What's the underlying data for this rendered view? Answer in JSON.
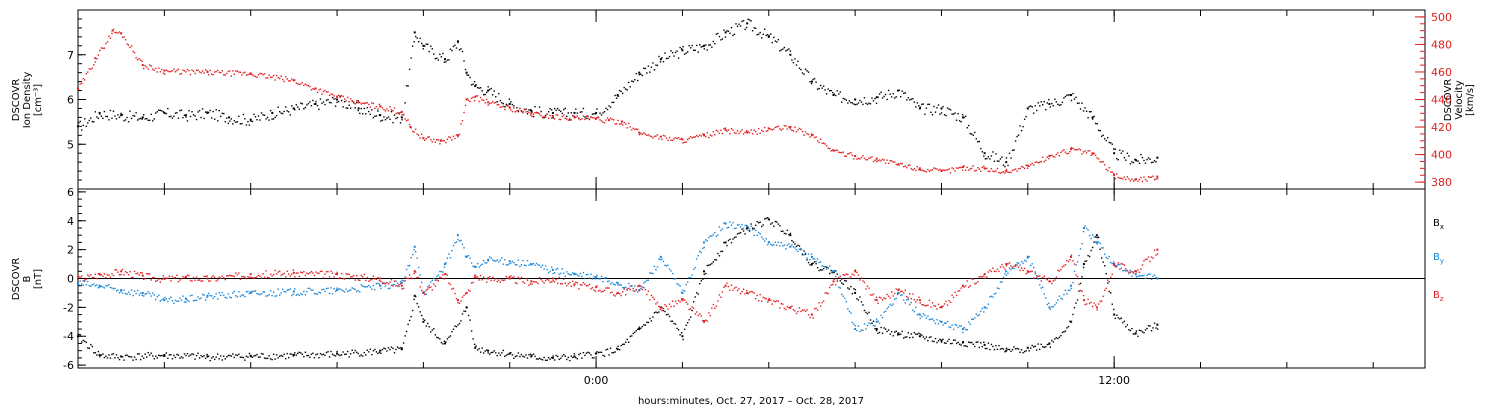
{
  "chart_data": [
    {
      "type": "scatter",
      "panel": "top",
      "left_axis": {
        "label_lines": [
          "DSCOVR",
          "Ion Density",
          "[cm⁻³]"
        ],
        "ylim": [
          4.0,
          8.0
        ],
        "ticks": [
          5,
          6,
          7
        ],
        "tick_labels": [
          "5",
          "6",
          "7"
        ],
        "color": "#000000"
      },
      "right_axis": {
        "label_lines": [
          "DSCOVR",
          "Velocity",
          "[km/s]"
        ],
        "ylim": [
          375,
          505
        ],
        "ticks": [
          380,
          400,
          420,
          440,
          460,
          480,
          500
        ],
        "tick_labels": [
          "380",
          "400",
          "420",
          "440",
          "460",
          "480",
          "500"
        ],
        "color": "#e02020"
      },
      "xlim_hours": [
        -12.0,
        19.2
      ],
      "x_unit": "hours from 0:00 Oct. 28, 2017",
      "series": [
        {
          "key": "density",
          "axis": "left",
          "color": "#000000",
          "x": [
            -12.0,
            -11.5,
            -11.0,
            -10.5,
            -10.0,
            -9.5,
            -9.0,
            -8.5,
            -8.0,
            -7.5,
            -7.0,
            -6.5,
            -6.0,
            -5.5,
            -5.0,
            -4.5,
            -4.2,
            -4.0,
            -3.5,
            -3.2,
            -3.0,
            -2.8,
            -2.5,
            -2.0,
            -1.5,
            -1.0,
            -0.5,
            0.0,
            0.5,
            1.0,
            1.5,
            2.0,
            2.5,
            3.0,
            3.5,
            4.0,
            4.5,
            5.0,
            5.5,
            6.0,
            6.5,
            7.0,
            7.5,
            8.0,
            8.5,
            9.0,
            9.5,
            10.0,
            10.5,
            11.0,
            11.5,
            12.0,
            12.5,
            13.0
          ],
          "y": [
            5.4,
            5.7,
            5.65,
            5.6,
            5.7,
            5.65,
            5.7,
            5.6,
            5.55,
            5.7,
            5.8,
            5.9,
            6.0,
            5.8,
            5.65,
            5.6,
            7.5,
            7.2,
            6.9,
            7.3,
            6.6,
            6.3,
            6.2,
            5.9,
            5.75,
            5.7,
            5.7,
            5.7,
            6.1,
            6.6,
            6.9,
            7.1,
            7.2,
            7.5,
            7.7,
            7.4,
            7.0,
            6.4,
            6.1,
            6.0,
            6.05,
            6.2,
            5.8,
            5.8,
            5.6,
            4.8,
            4.6,
            5.8,
            5.9,
            6.1,
            5.6,
            4.8,
            4.65,
            4.7
          ]
        },
        {
          "key": "velocity",
          "axis": "right",
          "color": "#e02020",
          "x": [
            -12.0,
            -11.6,
            -11.2,
            -11.0,
            -10.5,
            -10.0,
            -9.0,
            -8.0,
            -7.0,
            -6.5,
            -6.0,
            -5.5,
            -5.0,
            -4.5,
            -4.3,
            -4.0,
            -3.6,
            -3.2,
            -3.0,
            -2.8,
            -2.5,
            -2.0,
            -1.5,
            -1.0,
            -0.5,
            0.0,
            0.3,
            0.6,
            1.0,
            1.5,
            2.0,
            2.5,
            3.0,
            3.5,
            4.0,
            4.5,
            5.0,
            5.5,
            6.0,
            6.5,
            7.0,
            7.5,
            8.0,
            8.5,
            9.0,
            9.5,
            10.0,
            10.5,
            11.0,
            11.5,
            12.0,
            12.5,
            13.0
          ],
          "y": [
            448,
            470,
            490,
            488,
            465,
            461,
            460,
            459,
            454,
            448,
            442,
            438,
            435,
            431,
            420,
            412,
            410,
            414,
            440,
            442,
            438,
            434,
            430,
            428,
            427,
            426,
            425,
            424,
            416,
            413,
            411,
            414,
            418,
            416,
            419,
            420,
            414,
            403,
            399,
            397,
            393,
            390,
            388,
            391,
            390,
            388,
            392,
            399,
            404,
            401,
            385,
            382,
            384
          ]
        }
      ]
    },
    {
      "type": "scatter",
      "panel": "bottom",
      "left_axis": {
        "label_lines": [
          "DSCOVR",
          "B",
          "[nT]"
        ],
        "ylim": [
          -6.2,
          6.2
        ],
        "ticks": [
          -6,
          -4,
          -2,
          0,
          2,
          4,
          6
        ],
        "tick_labels": [
          "-6",
          "-4",
          "-2",
          "0",
          "2",
          "4",
          "6"
        ],
        "color": "#000000"
      },
      "xlim_hours": [
        -12.0,
        19.2
      ],
      "zero_line": true,
      "series": [
        {
          "key": "bx",
          "legend_letter": "B",
          "legend_sub": "x",
          "color": "#000000",
          "x": [
            -12.0,
            -11.5,
            -11.0,
            -10.0,
            -9.0,
            -8.0,
            -7.0,
            -6.0,
            -5.0,
            -4.5,
            -4.2,
            -4.0,
            -3.5,
            -3.0,
            -2.8,
            -2.5,
            -2.0,
            -1.5,
            -1.0,
            -0.5,
            0.0,
            0.5,
            1.0,
            1.5,
            2.0,
            2.5,
            3.0,
            3.5,
            4.0,
            4.5,
            5.0,
            5.5,
            6.0,
            6.5,
            7.0,
            7.5,
            8.0,
            8.5,
            9.0,
            9.5,
            10.0,
            10.5,
            11.0,
            11.3,
            11.6,
            12.0,
            12.5,
            13.0
          ],
          "y": [
            -4.0,
            -5.3,
            -5.4,
            -5.3,
            -5.4,
            -5.35,
            -5.3,
            -5.2,
            -5.0,
            -4.9,
            -1.2,
            -3.0,
            -4.5,
            -2.0,
            -4.8,
            -5.0,
            -5.2,
            -5.4,
            -5.5,
            -5.4,
            -5.2,
            -4.9,
            -3.5,
            -2.0,
            -4.0,
            0.5,
            2.5,
            3.5,
            4.1,
            3.0,
            1.0,
            0.5,
            -1.0,
            -3.5,
            -3.8,
            -4.0,
            -4.3,
            -4.4,
            -4.6,
            -5.0,
            -4.8,
            -4.5,
            -3.0,
            1.0,
            3.0,
            -2.5,
            -3.8,
            -3.2
          ]
        },
        {
          "key": "by",
          "legend_letter": "B",
          "legend_sub": "y",
          "color": "#1a86d8",
          "x": [
            -12.0,
            -11.5,
            -11.0,
            -10.5,
            -10.0,
            -9.5,
            -9.0,
            -8.0,
            -7.0,
            -6.0,
            -5.0,
            -4.5,
            -4.2,
            -4.0,
            -3.5,
            -3.2,
            -3.0,
            -2.8,
            -2.5,
            -2.0,
            -1.5,
            -1.0,
            -0.5,
            0.0,
            0.5,
            1.0,
            1.5,
            2.0,
            2.5,
            3.0,
            3.5,
            4.0,
            4.5,
            5.0,
            5.5,
            6.0,
            6.5,
            7.0,
            7.5,
            8.0,
            8.5,
            9.0,
            9.5,
            10.0,
            10.5,
            11.0,
            11.3,
            11.6,
            12.0,
            12.5,
            13.0
          ],
          "y": [
            -0.3,
            -0.5,
            -0.8,
            -1.0,
            -1.5,
            -1.4,
            -1.2,
            -1.0,
            -0.9,
            -0.8,
            -0.5,
            -0.3,
            2.2,
            -1.0,
            1.0,
            3.0,
            1.5,
            0.8,
            1.3,
            1.2,
            1.0,
            0.6,
            0.3,
            0.1,
            -0.3,
            -0.8,
            1.5,
            -1.0,
            2.5,
            3.8,
            3.6,
            2.5,
            2.2,
            1.5,
            0.5,
            -3.5,
            -3.0,
            -1.0,
            -2.5,
            -3.0,
            -3.5,
            -2.0,
            0.5,
            1.5,
            -2.0,
            -0.5,
            3.5,
            2.5,
            1.0,
            0.3,
            0.0
          ]
        },
        {
          "key": "bz",
          "legend_letter": "B",
          "legend_sub": "z",
          "color": "#e02020",
          "x": [
            -12.0,
            -11.5,
            -11.0,
            -10.5,
            -10.0,
            -9.5,
            -9.0,
            -8.0,
            -7.0,
            -6.0,
            -5.0,
            -4.5,
            -4.2,
            -4.0,
            -3.5,
            -3.2,
            -3.0,
            -2.8,
            -2.5,
            -2.0,
            -1.5,
            -1.0,
            -0.5,
            0.0,
            0.5,
            1.0,
            1.5,
            2.0,
            2.5,
            3.0,
            3.5,
            4.0,
            4.5,
            5.0,
            5.5,
            6.0,
            6.5,
            7.0,
            7.5,
            8.0,
            8.5,
            9.0,
            9.5,
            10.0,
            10.5,
            11.0,
            11.3,
            11.6,
            12.0,
            12.5,
            13.0
          ],
          "y": [
            0.0,
            0.3,
            0.5,
            0.2,
            0.0,
            0.1,
            0.0,
            0.3,
            0.4,
            0.3,
            0.0,
            -0.5,
            0.5,
            -1.0,
            0.3,
            -1.5,
            -1.0,
            0.2,
            0.0,
            0.0,
            -0.2,
            0.0,
            -0.4,
            -0.6,
            -1.0,
            -0.5,
            -2.0,
            -1.5,
            -3.0,
            -0.5,
            -1.0,
            -1.5,
            -2.0,
            -2.5,
            -0.2,
            0.5,
            -1.5,
            -0.8,
            -1.5,
            -2.0,
            -0.5,
            0.3,
            1.0,
            0.5,
            -0.2,
            1.5,
            -1.5,
            -2.0,
            1.0,
            0.5,
            2.0
          ]
        }
      ]
    }
  ],
  "x_axis": {
    "ticks_hours": [
      0,
      12
    ],
    "tick_labels": [
      "0:00",
      "12:00"
    ],
    "minor_tick_step_hours": 2,
    "label": "hours:minutes, Oct. 27, 2017 – Oct. 28, 2017"
  }
}
